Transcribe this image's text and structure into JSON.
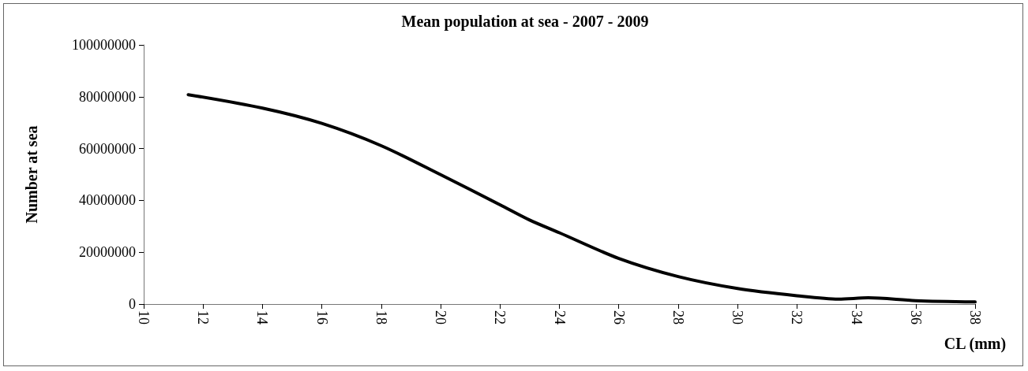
{
  "chart_data": {
    "type": "line",
    "title": "Mean population at sea - 2007 - 2009",
    "xlabel": "CL (mm)",
    "ylabel": "Number at sea",
    "xlim": [
      10,
      38
    ],
    "xticks": [
      10,
      12,
      14,
      16,
      18,
      20,
      22,
      24,
      26,
      28,
      30,
      32,
      34,
      36,
      38
    ],
    "ylim": [
      0,
      100000000
    ],
    "yticks": [
      0,
      20000000,
      40000000,
      60000000,
      80000000,
      100000000
    ],
    "grid": false,
    "marker": "none",
    "line_style": "solid",
    "series": [
      {
        "color": "#000000",
        "x": [
          11.5,
          14,
          16,
          18,
          20,
          22,
          23,
          24,
          26,
          28,
          30,
          32,
          33.4,
          34.4,
          36,
          38
        ],
        "values": [
          80800000,
          75600000,
          69700000,
          61100000,
          49900000,
          38300000,
          32400000,
          27500000,
          17600000,
          10600000,
          6000000,
          3200000,
          1900000,
          2400000,
          1300000,
          800000
        ]
      }
    ]
  }
}
